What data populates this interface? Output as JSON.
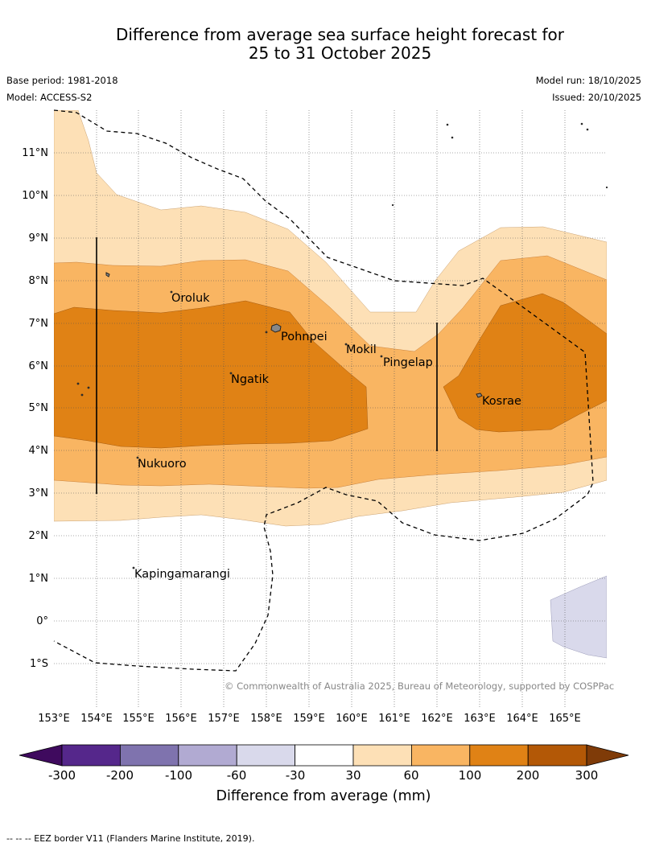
{
  "title_line1": "Difference from average sea surface height forecast for",
  "title_line2": "25 to 31 October 2025",
  "base_period": "Base period: 1981-2018",
  "model": "Model: ACCESS-S2",
  "model_run": "Model run: 18/10/2025",
  "issued": "Issued: 20/10/2025",
  "copyright": "© Commonwealth of Australia 2025, Bureau of Meteorology, supported by COSPPac",
  "lat_labels": [
    "11°N",
    "10°N",
    "9°N",
    "8°N",
    "7°N",
    "6°N",
    "5°N",
    "4°N",
    "3°N",
    "2°N",
    "1°N",
    "0°",
    "1°S"
  ],
  "lon_labels": [
    "153°E",
    "154°E",
    "155°E",
    "156°E",
    "157°E",
    "158°E",
    "159°E",
    "160°E",
    "161°E",
    "162°E",
    "163°E",
    "164°E",
    "165°E"
  ],
  "places": [
    "Oroluk",
    "Pohnpei",
    "Mokil",
    "Pingelap",
    "Ngatik",
    "Kosrae",
    "Nukuoro",
    "Kapingamarangi"
  ],
  "legend": {
    "title": "Difference from average (mm)",
    "ticks": [
      "-300",
      "-200",
      "-100",
      "-60",
      "-30",
      "30",
      "60",
      "100",
      "200",
      "300"
    ],
    "colors": [
      "#3f0a5e",
      "#55278b",
      "#7f73ae",
      "#b1aad2",
      "#d9d9eb",
      "#ffffff",
      "#fde0b6",
      "#f9b562",
      "#e08215",
      "#b35806",
      "#7f3b08"
    ]
  },
  "footer": "-- -- -- EEZ border V11 (Flanders Marine Institute, 2019)."
}
